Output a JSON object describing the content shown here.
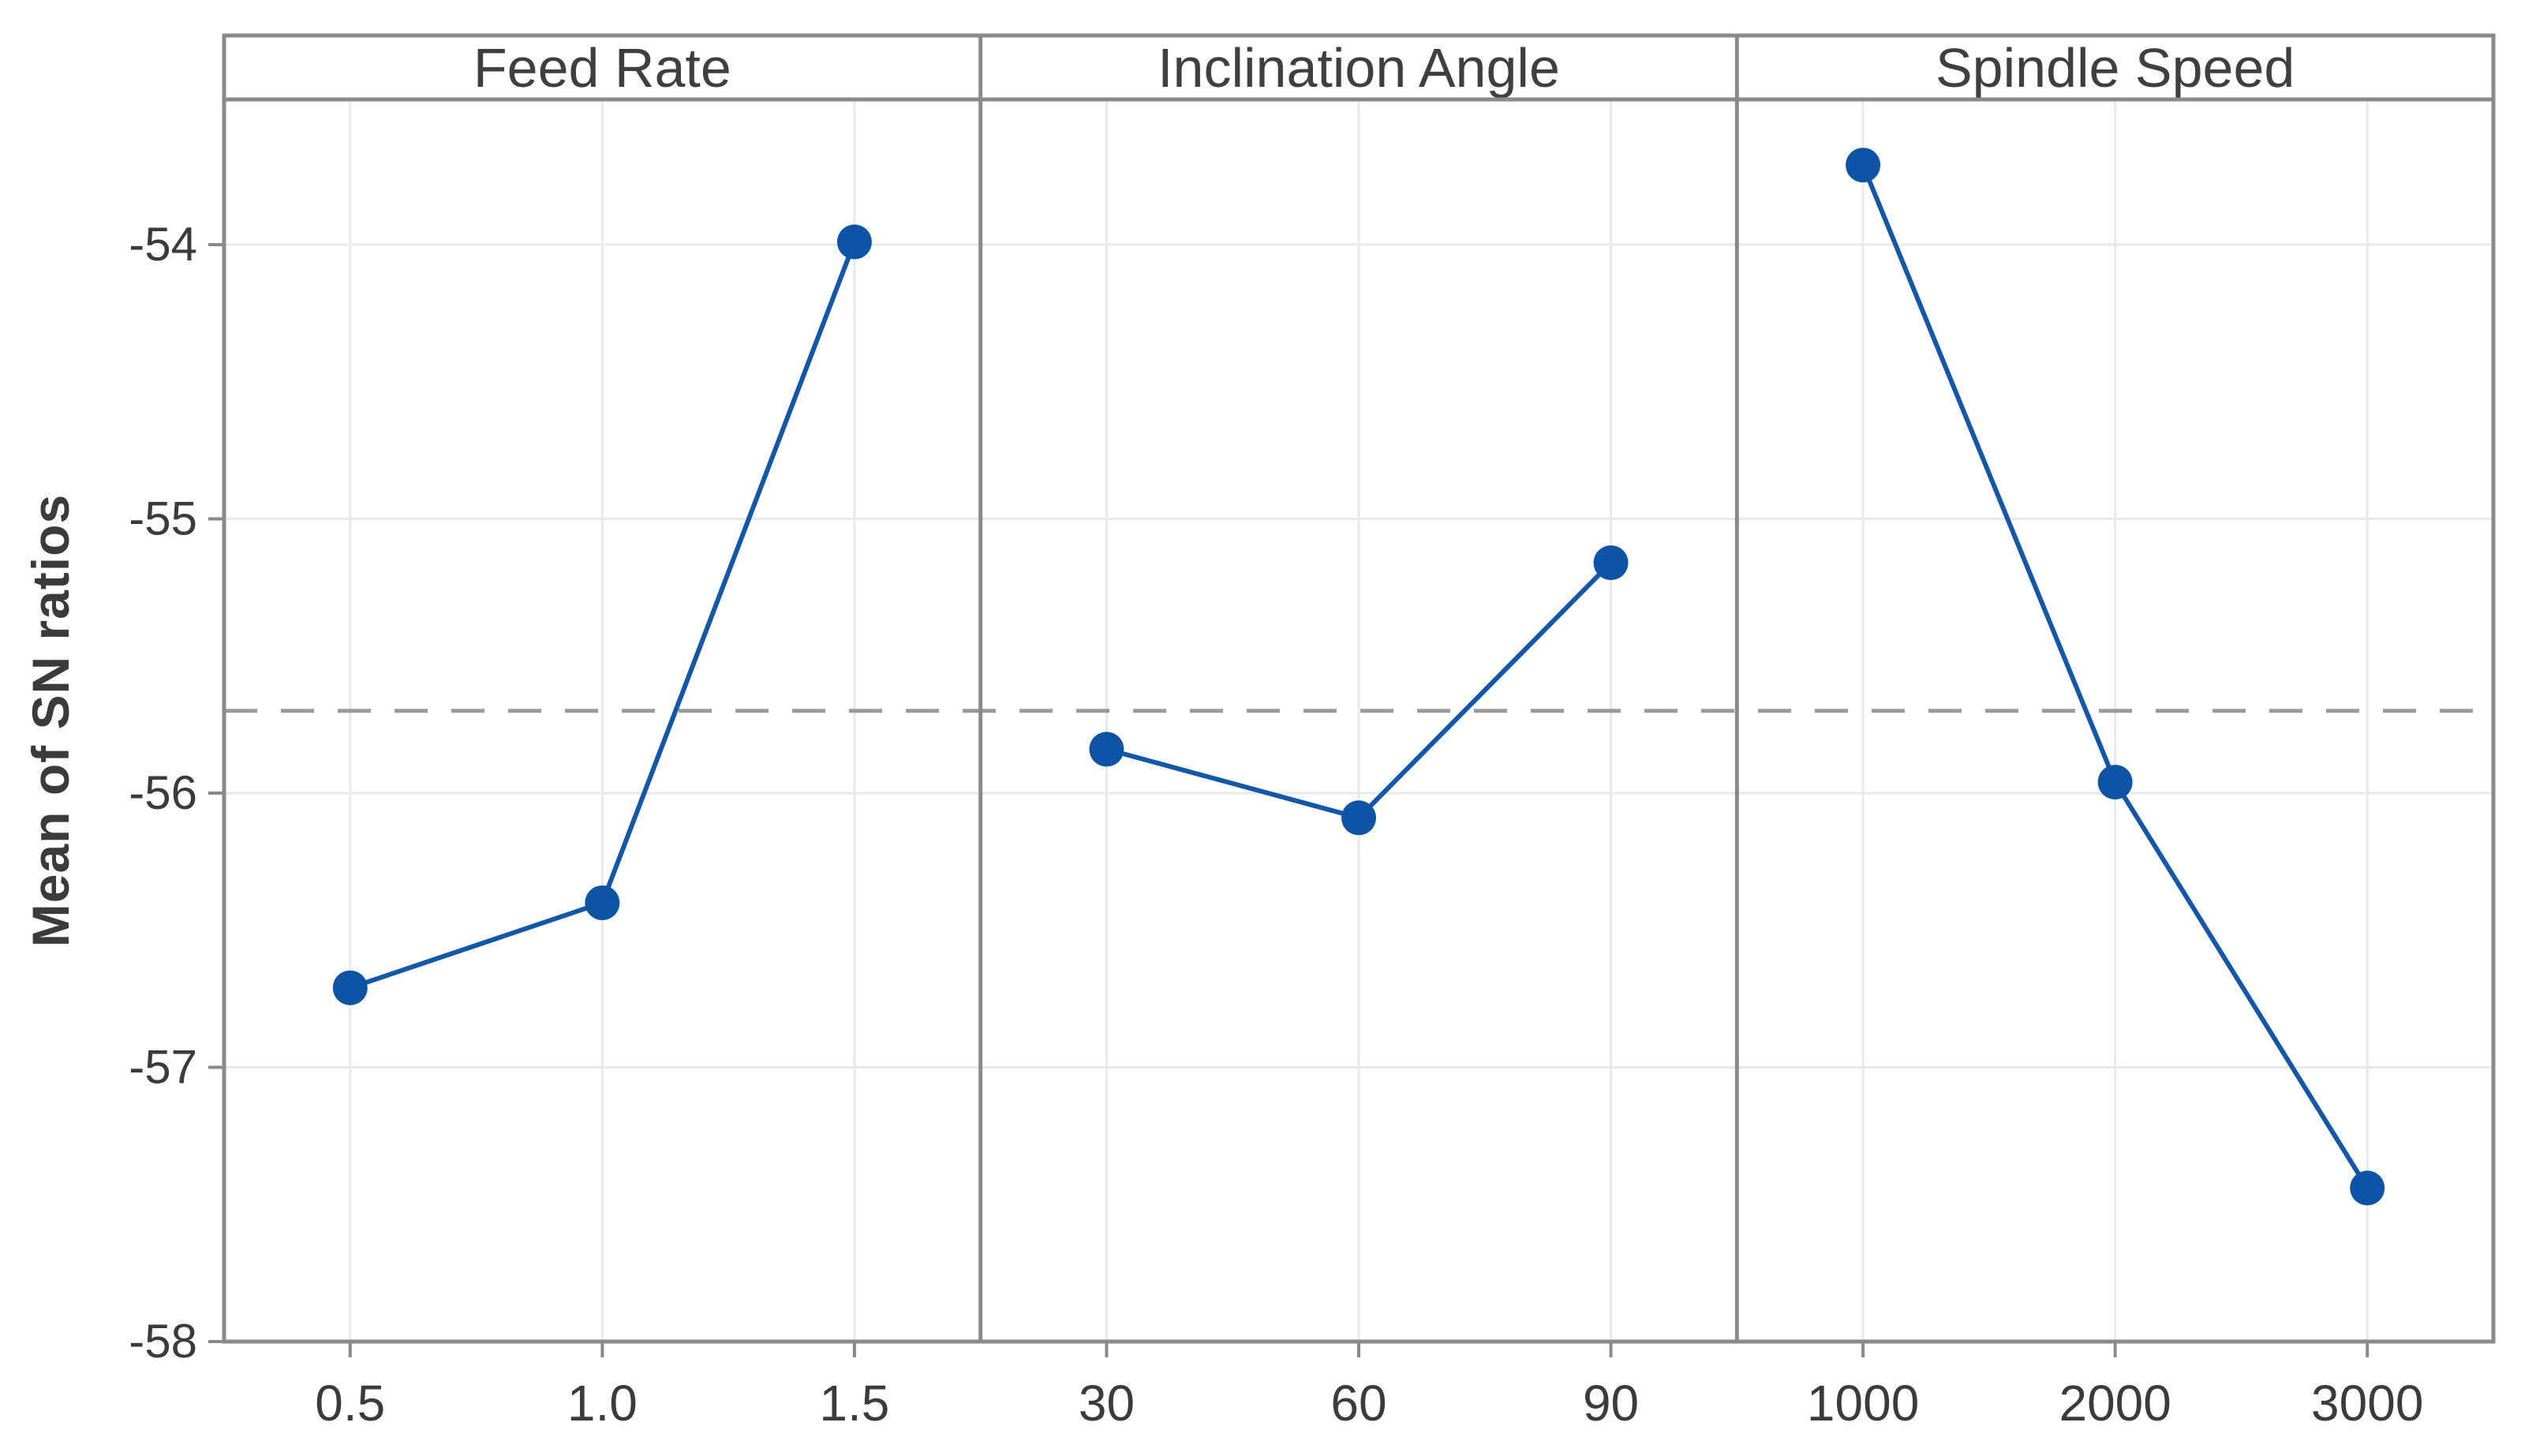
{
  "colors": {
    "series_blue": "#1257a8",
    "marker_blue": "#0d54a6",
    "grid_gray": "#e9e9e9",
    "frame_gray": "#8a8a8a",
    "dashed_gray": "#9a9a9a",
    "text_gray": "#3b3b3b"
  },
  "chart_data": {
    "type": "line",
    "subtype": "main-effects-plot",
    "ylabel": "Mean of SN ratios",
    "ytick_labels": [
      "-54",
      "-55",
      "-56",
      "-57",
      "-58"
    ],
    "ytick_values": [
      -54,
      -55,
      -56,
      -57,
      -58
    ],
    "ylim": [
      -58.02,
      -53.47
    ],
    "reference_line": -55.7,
    "grid": true,
    "legend_position": "none",
    "panels": [
      {
        "title": "Feed Rate",
        "categories": [
          "0.5",
          "1.0",
          "1.5"
        ],
        "values": [
          -56.71,
          -56.4,
          -53.99
        ]
      },
      {
        "title": "Inclination Angle",
        "categories": [
          "30",
          "60",
          "90"
        ],
        "values": [
          -55.84,
          -56.09,
          -55.16
        ]
      },
      {
        "title": "Spindle Speed",
        "categories": [
          "1000",
          "2000",
          "3000"
        ],
        "values": [
          -53.71,
          -55.96,
          -57.44
        ]
      }
    ]
  }
}
